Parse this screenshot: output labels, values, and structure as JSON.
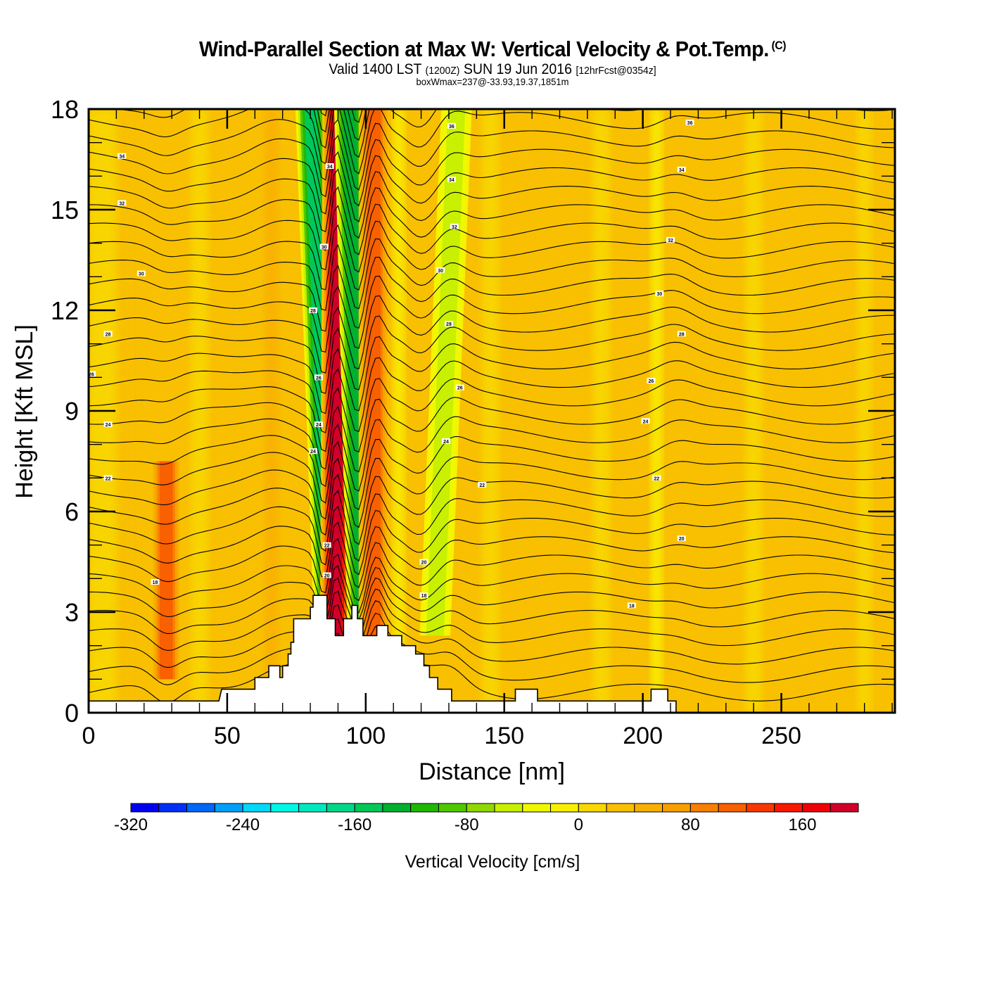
{
  "header": {
    "title": "Wind-Parallel Section at Max W: Vertical Velocity & Pot.Temp.",
    "copyright": "(C)",
    "valid_prefix": "Valid 1400 LST",
    "valid_utc": "(1200Z)",
    "valid_date": "SUN 19 Jun 2016",
    "forecast": "[12hrFcst@0354z]",
    "box_info": "boxWmax=237@-33.93,19.37,1851m"
  },
  "chart_data": {
    "type": "heatmap",
    "title": "Wind-Parallel Section at Max W: Vertical Velocity & Pot.Temp.",
    "xlabel": "Distance [nm]",
    "ylabel": "Height [Kft MSL]",
    "xlim": [
      0,
      291
    ],
    "ylim": [
      0,
      18
    ],
    "x_ticks": [
      "0",
      "50",
      "100",
      "150",
      "200",
      "250"
    ],
    "x_tick_values": [
      0,
      50,
      100,
      150,
      200,
      250
    ],
    "y_ticks": [
      "0",
      "3",
      "6",
      "9",
      "12",
      "15",
      "18"
    ],
    "y_tick_values": [
      0,
      3,
      6,
      9,
      12,
      15,
      18
    ],
    "colorbar": {
      "label": "Vertical Velocity [cm/s]",
      "tick_labels": [
        "-320",
        "-240",
        "-160",
        "-80",
        "0",
        "80",
        "160"
      ],
      "tick_values": [
        -320,
        -240,
        -160,
        -80,
        0,
        80,
        160
      ],
      "min": -320,
      "max": 200,
      "step": 20,
      "colors": [
        "#0000f0",
        "#0030f8",
        "#0068f8",
        "#00a0f8",
        "#00d8f8",
        "#00f8e8",
        "#00e8c0",
        "#00d888",
        "#00c858",
        "#00b030",
        "#20b800",
        "#50c800",
        "#90d800",
        "#c8f000",
        "#f0f800",
        "#f8f000",
        "#f8d800",
        "#f8c000",
        "#f8b000",
        "#f8a000",
        "#f88000",
        "#f86000",
        "#f83800",
        "#f81800",
        "#f00008",
        "#d00028"
      ]
    },
    "velocity_features": [
      {
        "name": "downdraft-lee-wave-1",
        "x_bottom": 87,
        "x_top": 80,
        "min_cm_s": -150
      },
      {
        "name": "updraft-main",
        "x_bottom": 89,
        "x_top": 90,
        "max_cm_s": 180
      },
      {
        "name": "downdraft-lee-wave-2",
        "x_bottom": 99,
        "x_top": 94,
        "min_cm_s": -140
      },
      {
        "name": "updraft-secondary",
        "x_bottom": 103,
        "x_top": 103,
        "max_cm_s": 110
      },
      {
        "name": "downdraft-weak",
        "x_bottom": 125,
        "x_top": 133,
        "min_cm_s": -60
      },
      {
        "name": "updraft-west",
        "x_bottom": 28,
        "x_top": 28,
        "max_cm_s": 100
      }
    ],
    "terrain_kft": [
      [
        0,
        0.35
      ],
      [
        47,
        0.35
      ],
      [
        48,
        0.7
      ],
      [
        60,
        0.7
      ],
      [
        60,
        1.05
      ],
      [
        65,
        1.05
      ],
      [
        65,
        1.4
      ],
      [
        69,
        1.4
      ],
      [
        69,
        1.05
      ],
      [
        70,
        1.05
      ],
      [
        70,
        1.4
      ],
      [
        72,
        1.4
      ],
      [
        72,
        1.75
      ],
      [
        73,
        1.75
      ],
      [
        73,
        2.1
      ],
      [
        74,
        2.1
      ],
      [
        74,
        2.8
      ],
      [
        80,
        2.8
      ],
      [
        80,
        3.15
      ],
      [
        81,
        3.15
      ],
      [
        81,
        3.5
      ],
      [
        86,
        3.5
      ],
      [
        86,
        2.8
      ],
      [
        89,
        2.8
      ],
      [
        89,
        2.3
      ],
      [
        92,
        2.3
      ],
      [
        92,
        2.8
      ],
      [
        95,
        2.8
      ],
      [
        95,
        3.2
      ],
      [
        97,
        3.2
      ],
      [
        97,
        2.8
      ],
      [
        99,
        2.8
      ],
      [
        99,
        2.3
      ],
      [
        104,
        2.3
      ],
      [
        104,
        2.6
      ],
      [
        108,
        2.6
      ],
      [
        108,
        2.3
      ],
      [
        113,
        2.3
      ],
      [
        113,
        2.0
      ],
      [
        118,
        2.0
      ],
      [
        118,
        1.75
      ],
      [
        121,
        1.75
      ],
      [
        121,
        1.4
      ],
      [
        123,
        1.4
      ],
      [
        123,
        1.05
      ],
      [
        126,
        1.05
      ],
      [
        126,
        0.7
      ],
      [
        131,
        0.7
      ],
      [
        131,
        0.35
      ],
      [
        154,
        0.35
      ],
      [
        154,
        0.7
      ],
      [
        162,
        0.7
      ],
      [
        162,
        0.35
      ],
      [
        203,
        0.35
      ],
      [
        203,
        0.7
      ],
      [
        209,
        0.7
      ],
      [
        209,
        0.35
      ],
      [
        212,
        0.35
      ],
      [
        212,
        0.0
      ],
      [
        291,
        0.0
      ]
    ],
    "theta_contour_labels": [
      "18",
      "20",
      "22",
      "24",
      "26",
      "28",
      "30",
      "32",
      "34",
      "36"
    ],
    "theta_contours": {
      "count": 35,
      "spacing_kft": 0.55,
      "note": "potential temperature isentropes, labelled in degC"
    },
    "contour_label_samples": [
      {
        "x": 12,
        "y": 16.6,
        "text": "34"
      },
      {
        "x": 12,
        "y": 15.2,
        "text": "32"
      },
      {
        "x": 19,
        "y": 13.1,
        "text": "30"
      },
      {
        "x": 7,
        "y": 11.3,
        "text": "28"
      },
      {
        "x": 1,
        "y": 10.1,
        "text": "26"
      },
      {
        "x": 7,
        "y": 8.6,
        "text": "24"
      },
      {
        "x": 7,
        "y": 7.0,
        "text": "22"
      },
      {
        "x": 24,
        "y": 3.9,
        "text": "18"
      },
      {
        "x": 87,
        "y": 16.3,
        "text": "34"
      },
      {
        "x": 85,
        "y": 13.9,
        "text": "30"
      },
      {
        "x": 81,
        "y": 12.0,
        "text": "28"
      },
      {
        "x": 83,
        "y": 10.0,
        "text": "26"
      },
      {
        "x": 83,
        "y": 8.6,
        "text": "24"
      },
      {
        "x": 81,
        "y": 7.8,
        "text": "24"
      },
      {
        "x": 86,
        "y": 5.0,
        "text": "22"
      },
      {
        "x": 86,
        "y": 4.1,
        "text": "20"
      },
      {
        "x": 131,
        "y": 17.5,
        "text": "36"
      },
      {
        "x": 131,
        "y": 15.9,
        "text": "34"
      },
      {
        "x": 132,
        "y": 14.5,
        "text": "32"
      },
      {
        "x": 127,
        "y": 13.2,
        "text": "30"
      },
      {
        "x": 130,
        "y": 11.6,
        "text": "28"
      },
      {
        "x": 134,
        "y": 9.7,
        "text": "26"
      },
      {
        "x": 129,
        "y": 8.1,
        "text": "24"
      },
      {
        "x": 142,
        "y": 6.8,
        "text": "22"
      },
      {
        "x": 121,
        "y": 4.5,
        "text": "20"
      },
      {
        "x": 121,
        "y": 3.5,
        "text": "18"
      },
      {
        "x": 217,
        "y": 17.6,
        "text": "36"
      },
      {
        "x": 214,
        "y": 16.2,
        "text": "34"
      },
      {
        "x": 210,
        "y": 14.1,
        "text": "32"
      },
      {
        "x": 206,
        "y": 12.5,
        "text": "30"
      },
      {
        "x": 214,
        "y": 11.3,
        "text": "28"
      },
      {
        "x": 203,
        "y": 9.9,
        "text": "26"
      },
      {
        "x": 201,
        "y": 8.7,
        "text": "24"
      },
      {
        "x": 205,
        "y": 7.0,
        "text": "22"
      },
      {
        "x": 214,
        "y": 5.2,
        "text": "20"
      },
      {
        "x": 196,
        "y": 3.2,
        "text": "18"
      }
    ]
  }
}
